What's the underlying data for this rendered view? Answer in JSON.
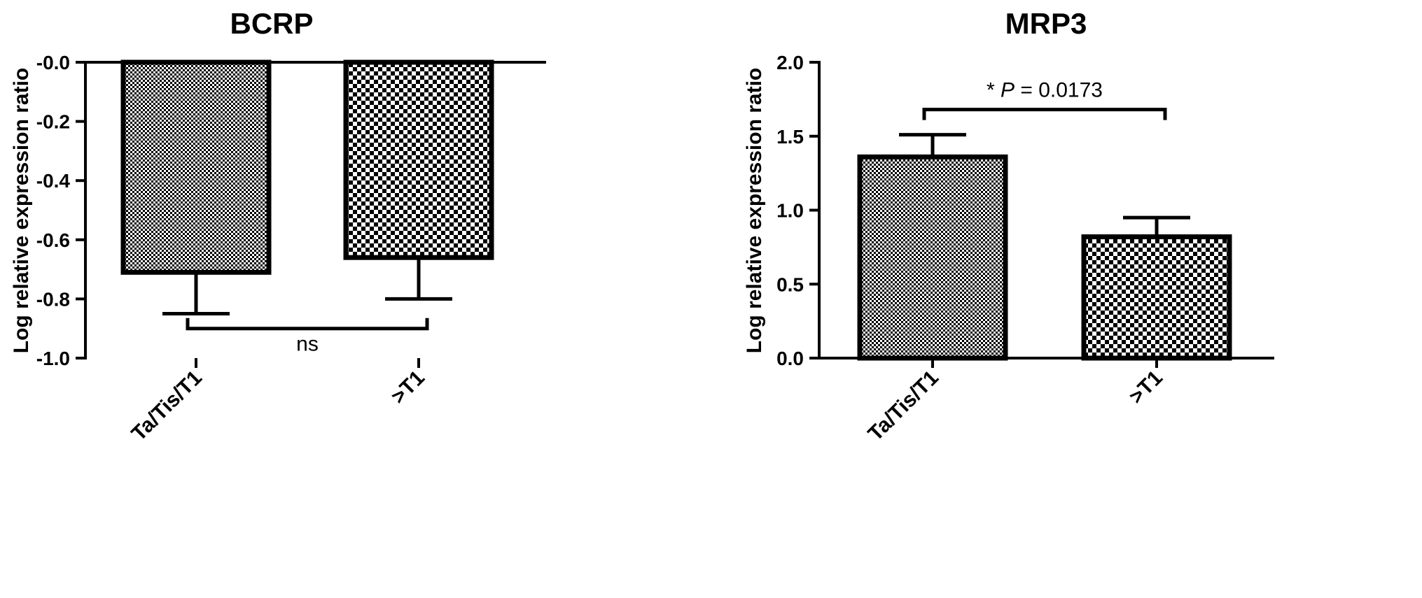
{
  "chart_data": [
    {
      "type": "bar",
      "title": "BCRP",
      "ylabel": "Log relative expression ratio",
      "xlabel": "",
      "categories": [
        "Ta/Tis/T1",
        ">T1"
      ],
      "values": [
        -0.71,
        -0.66
      ],
      "error": [
        0.14,
        0.14
      ],
      "ylim": [
        -1.0,
        0.0
      ],
      "yticks": [
        0.0,
        -0.2,
        -0.4,
        -0.6,
        -0.8,
        -1.0
      ],
      "ytick_labels": [
        "-0.0",
        "-0.2",
        "-0.4",
        "-0.6",
        "-0.8",
        "-1.0"
      ],
      "significance": {
        "label": "ns",
        "italic_part": "",
        "position": "below",
        "level": -0.9
      },
      "patterns": [
        "fine-checker",
        "coarse-checker"
      ]
    },
    {
      "type": "bar",
      "title": "MRP3",
      "ylabel": "Log relative expression ratio",
      "xlabel": "",
      "categories": [
        "Ta/Tis/T1",
        ">T1"
      ],
      "values": [
        1.36,
        0.82
      ],
      "error": [
        0.15,
        0.13
      ],
      "ylim": [
        0.0,
        2.0
      ],
      "yticks": [
        2.0,
        1.5,
        1.0,
        0.5,
        0.0
      ],
      "ytick_labels": [
        "2.0",
        "1.5",
        "1.0",
        "0.5",
        "0.0"
      ],
      "significance": {
        "label": "* P = 0.0173",
        "prefix": "* ",
        "italic_part": "P",
        "suffix": " = 0.0173",
        "position": "above",
        "level": 1.68
      },
      "patterns": [
        "fine-checker",
        "coarse-checker"
      ]
    }
  ]
}
